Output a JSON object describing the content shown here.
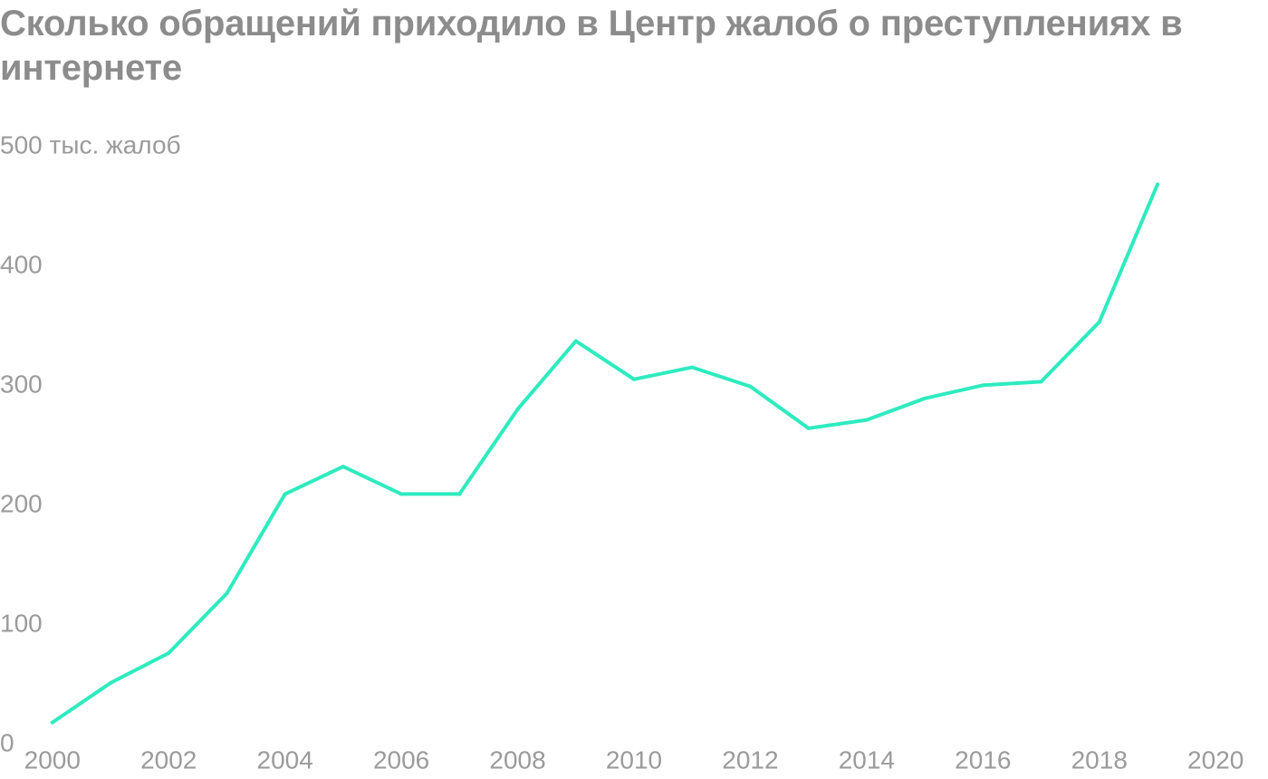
{
  "chart_data": {
    "type": "line",
    "title": "Сколько обращений приходило в Центр жалоб о преступлениях в интернете",
    "y_unit_label": "500 тыс. жалоб",
    "ylim": [
      0,
      500
    ],
    "y_ticks": [
      {
        "value": 0,
        "label": "0"
      },
      {
        "value": 100,
        "label": "100"
      },
      {
        "value": 200,
        "label": "200"
      },
      {
        "value": 300,
        "label": "300"
      },
      {
        "value": 400,
        "label": "400"
      },
      {
        "value": 500,
        "label": "500 тыс. жалоб"
      }
    ],
    "xlim": [
      1999.1,
      2020.9
    ],
    "x_ticks": [
      "2000",
      "2002",
      "2004",
      "2006",
      "2008",
      "2010",
      "2012",
      "2014",
      "2016",
      "2018",
      "2020"
    ],
    "grid": false,
    "series": [
      {
        "color": "#2eebbf",
        "x": [
          2000,
          2001,
          2002,
          2003,
          2004,
          2005,
          2006,
          2007,
          2008,
          2009,
          2010,
          2011,
          2012,
          2013,
          2014,
          2015,
          2016,
          2017,
          2018,
          2019
        ],
        "y": [
          17,
          50,
          75,
          125,
          208,
          231,
          208,
          208,
          279,
          336,
          304,
          314,
          298,
          263,
          270,
          288,
          299,
          302,
          352,
          467
        ]
      }
    ]
  }
}
